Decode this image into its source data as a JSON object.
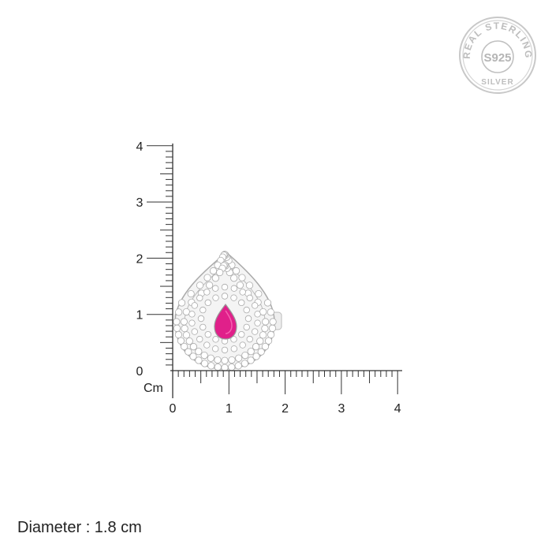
{
  "seal": {
    "text_top": "REAL STERLING",
    "text_center": "S925",
    "text_bottom": "SILVER"
  },
  "ruler": {
    "unit_label": "Cm",
    "x_ticks": [
      "0",
      "1",
      "2",
      "3",
      "4"
    ],
    "y_ticks": [
      "0",
      "1",
      "2",
      "3",
      "4"
    ],
    "range_cm": [
      0,
      4
    ],
    "minor_step_cm": 0.1
  },
  "product": {
    "stone_color": "#e0208a",
    "metal_color": "#d8d8d8"
  },
  "caption": {
    "diameter": "Diameter : 1.8 cm"
  }
}
